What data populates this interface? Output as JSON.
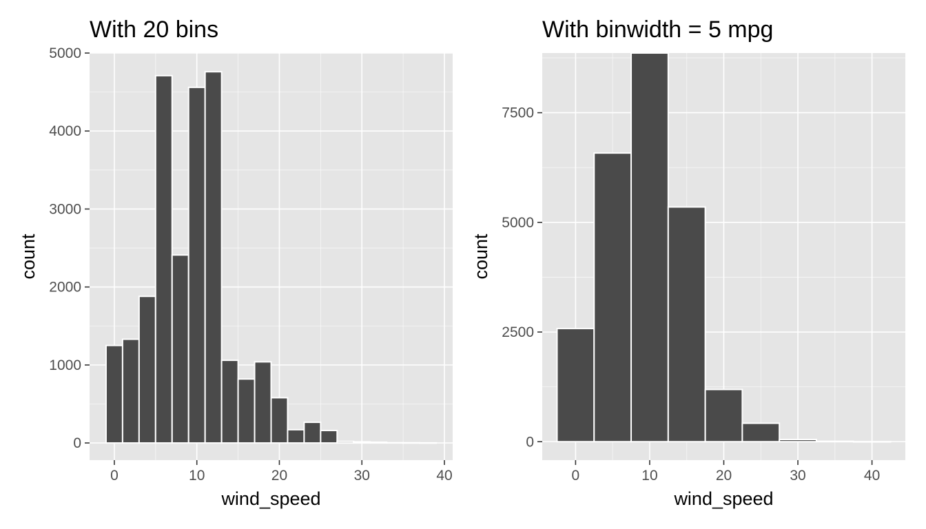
{
  "chart_data": [
    {
      "type": "bar",
      "title": "With 20 bins",
      "xlabel": "wind_speed",
      "ylabel": "count",
      "xlim": [
        -3,
        41
      ],
      "ylim": [
        -220,
        5000
      ],
      "x_ticks": [
        0,
        10,
        20,
        30,
        40
      ],
      "y_ticks": [
        0,
        1000,
        2000,
        3000,
        4000,
        5000
      ],
      "grid": true,
      "bin_width": 2.0,
      "bin_centers": [
        0,
        2,
        4,
        6,
        8,
        10,
        12,
        14,
        16,
        18,
        20,
        22,
        24,
        26,
        28,
        30,
        32,
        34,
        36,
        38
      ],
      "values": [
        1250,
        1330,
        1880,
        4710,
        2410,
        4560,
        4760,
        1060,
        820,
        1040,
        580,
        170,
        265,
        160,
        20,
        15,
        10,
        4,
        3,
        2
      ],
      "colors": {
        "bar_fill": "#4a4a4a",
        "bar_outline": "#ffffff",
        "panel_bg": "#e5e5e5",
        "grid": "#ffffff"
      }
    },
    {
      "type": "bar",
      "title": "With binwidth = 5 mpg",
      "xlabel": "wind_speed",
      "ylabel": "count",
      "xlim": [
        -4.5,
        44.5
      ],
      "ylim": [
        -420,
        8860
      ],
      "x_ticks": [
        0,
        10,
        20,
        30,
        40
      ],
      "y_ticks": [
        0,
        2500,
        5000,
        7500
      ],
      "grid": true,
      "bin_width": 5,
      "bin_centers": [
        0,
        5,
        10,
        15,
        20,
        25,
        30,
        35,
        40
      ],
      "values": [
        2580,
        6580,
        8860,
        5350,
        1190,
        420,
        50,
        10,
        2
      ],
      "colors": {
        "bar_fill": "#4a4a4a",
        "bar_outline": "#ffffff",
        "panel_bg": "#e5e5e5",
        "grid": "#ffffff"
      }
    }
  ]
}
